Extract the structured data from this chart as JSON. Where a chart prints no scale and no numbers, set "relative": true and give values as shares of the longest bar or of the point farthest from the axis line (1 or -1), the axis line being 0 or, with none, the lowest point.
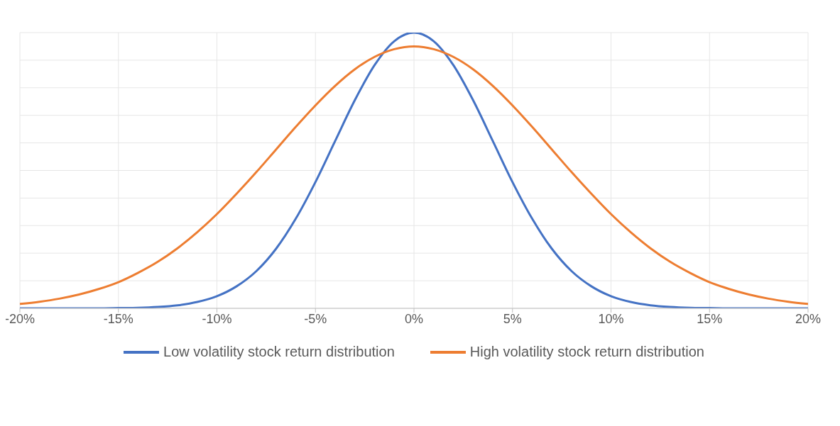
{
  "chart_data": {
    "type": "line",
    "relative": true,
    "x": [
      -20,
      -19,
      -18,
      -17,
      -16,
      -15,
      -14,
      -13,
      -12,
      -11,
      -10,
      -9,
      -8,
      -7,
      -6,
      -5,
      -4,
      -3,
      -2,
      -1,
      0,
      1,
      2,
      3,
      4,
      5,
      6,
      7,
      8,
      9,
      10,
      11,
      12,
      13,
      14,
      15,
      16,
      17,
      18,
      19,
      20
    ],
    "xlim": [
      -20,
      20
    ],
    "xticks": [
      {
        "value": -20,
        "label": "-20%"
      },
      {
        "value": -15,
        "label": "-15%"
      },
      {
        "value": -10,
        "label": "-10%"
      },
      {
        "value": -5,
        "label": "-5%"
      },
      {
        "value": 0,
        "label": "0%"
      },
      {
        "value": 5,
        "label": "5%"
      },
      {
        "value": 10,
        "label": "10%"
      },
      {
        "value": 15,
        "label": "15%"
      },
      {
        "value": 20,
        "label": "20%"
      }
    ],
    "series": [
      {
        "name": "Low volatility stock return distribution",
        "color": "#4472c4",
        "values": [
          0,
          0,
          0,
          0,
          0,
          0.001,
          0.002,
          0.005,
          0.011,
          0.023,
          0.044,
          0.08,
          0.135,
          0.216,
          0.325,
          0.458,
          0.607,
          0.755,
          0.882,
          0.969,
          1,
          0.969,
          0.882,
          0.755,
          0.607,
          0.458,
          0.325,
          0.216,
          0.135,
          0.08,
          0.044,
          0.023,
          0.011,
          0.005,
          0.002,
          0.001,
          0,
          0,
          0,
          0,
          0
        ]
      },
      {
        "name": "High volatility stock return distribution",
        "color": "#ed7d31",
        "values": [
          0.016,
          0.024,
          0.035,
          0.05,
          0.07,
          0.095,
          0.129,
          0.169,
          0.218,
          0.276,
          0.342,
          0.416,
          0.494,
          0.576,
          0.658,
          0.736,
          0.807,
          0.867,
          0.912,
          0.94,
          0.95,
          0.94,
          0.912,
          0.867,
          0.807,
          0.736,
          0.658,
          0.576,
          0.494,
          0.416,
          0.342,
          0.276,
          0.218,
          0.169,
          0.129,
          0.095,
          0.07,
          0.05,
          0.035,
          0.024,
          0.016
        ]
      }
    ],
    "grid": true,
    "legend": "bottom",
    "marker": "none",
    "line_style": "solid"
  }
}
